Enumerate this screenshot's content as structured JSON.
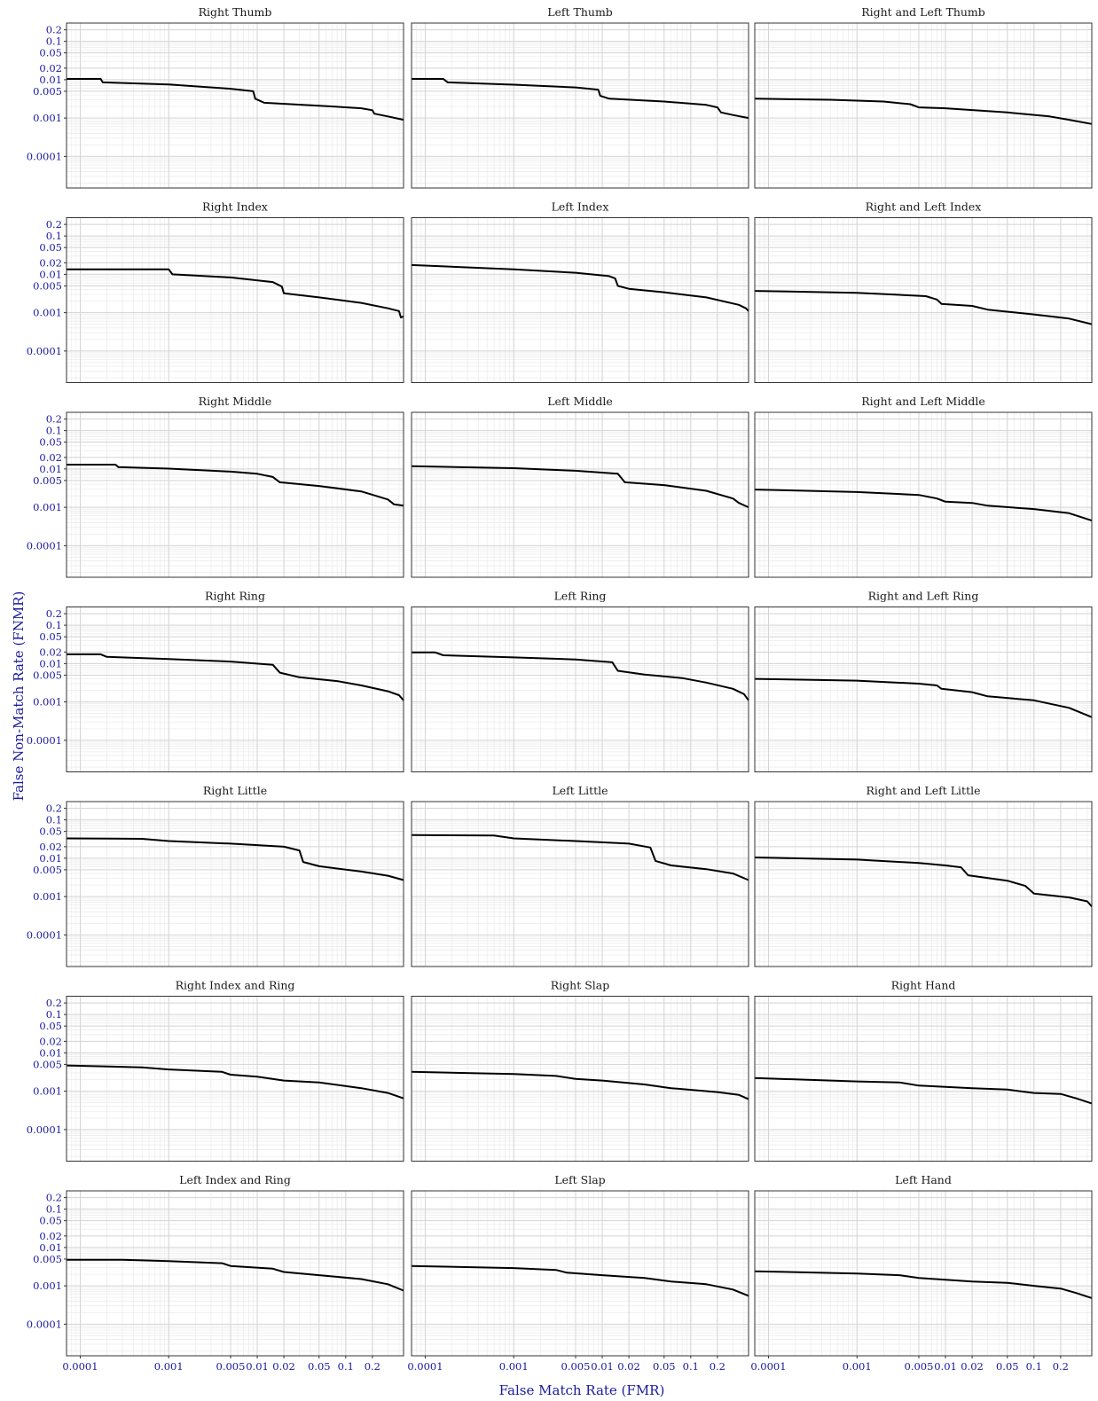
{
  "chart_data": {
    "type": "line",
    "layout": "facet-grid 7 rows x 3 columns",
    "xlabel": "False Match Rate (FMR)",
    "ylabel": "False Non-Match Rate (FNMR)",
    "xscale": "log",
    "yscale": "log",
    "xlim": [
      7e-05,
      0.45
    ],
    "ylim": [
      1.5e-05,
      0.3
    ],
    "grid": true,
    "x_ticks": [
      {
        "value": 0.0001,
        "label": "0.0001"
      },
      {
        "value": 0.001,
        "label": "0.001"
      },
      {
        "value": 0.005,
        "label": "0.005"
      },
      {
        "value": 0.01,
        "label": "0.01"
      },
      {
        "value": 0.02,
        "label": "0.02"
      },
      {
        "value": 0.05,
        "label": "0.05"
      },
      {
        "value": 0.1,
        "label": "0.1"
      },
      {
        "value": 0.2,
        "label": "0.2"
      }
    ],
    "y_ticks": [
      {
        "value": 0.0001,
        "label": "0.0001"
      },
      {
        "value": 0.001,
        "label": "0.001"
      },
      {
        "value": 0.005,
        "label": "0.005"
      },
      {
        "value": 0.01,
        "label": "0.01"
      },
      {
        "value": 0.02,
        "label": "0.02"
      },
      {
        "value": 0.05,
        "label": "0.05"
      },
      {
        "value": 0.1,
        "label": "0.1"
      },
      {
        "value": 0.2,
        "label": "0.2"
      }
    ],
    "panels": [
      {
        "title": "Right Thumb",
        "points": [
          [
            7e-05,
            0.0105
          ],
          [
            0.00017,
            0.0105
          ],
          [
            0.00018,
            0.0085
          ],
          [
            0.001,
            0.0075
          ],
          [
            0.005,
            0.0058
          ],
          [
            0.009,
            0.005
          ],
          [
            0.0095,
            0.0032
          ],
          [
            0.012,
            0.0025
          ],
          [
            0.05,
            0.0021
          ],
          [
            0.15,
            0.0018
          ],
          [
            0.2,
            0.0016
          ],
          [
            0.21,
            0.0013
          ],
          [
            0.3,
            0.0011
          ],
          [
            0.45,
            0.0009
          ]
        ]
      },
      {
        "title": "Left Thumb",
        "points": [
          [
            7e-05,
            0.0105
          ],
          [
            0.00016,
            0.0105
          ],
          [
            0.00018,
            0.0085
          ],
          [
            0.001,
            0.0074
          ],
          [
            0.005,
            0.0063
          ],
          [
            0.009,
            0.0055
          ],
          [
            0.0095,
            0.0038
          ],
          [
            0.012,
            0.0032
          ],
          [
            0.05,
            0.0027
          ],
          [
            0.15,
            0.0022
          ],
          [
            0.2,
            0.0019
          ],
          [
            0.22,
            0.0014
          ],
          [
            0.3,
            0.0012
          ],
          [
            0.45,
            0.001
          ]
        ]
      },
      {
        "title": "Right and Left Thumb",
        "points": [
          [
            7e-05,
            0.0032
          ],
          [
            0.0005,
            0.003
          ],
          [
            0.002,
            0.0027
          ],
          [
            0.004,
            0.0023
          ],
          [
            0.005,
            0.0019
          ],
          [
            0.01,
            0.0018
          ],
          [
            0.05,
            0.0014
          ],
          [
            0.15,
            0.0011
          ],
          [
            0.25,
            0.0009
          ],
          [
            0.45,
            0.0007
          ]
        ]
      },
      {
        "title": "Right Index",
        "points": [
          [
            7e-05,
            0.0135
          ],
          [
            0.001,
            0.0135
          ],
          [
            0.0011,
            0.01
          ],
          [
            0.005,
            0.0083
          ],
          [
            0.015,
            0.0063
          ],
          [
            0.019,
            0.0048
          ],
          [
            0.02,
            0.0032
          ],
          [
            0.05,
            0.0025
          ],
          [
            0.15,
            0.0018
          ],
          [
            0.3,
            0.0013
          ],
          [
            0.4,
            0.0011
          ],
          [
            0.42,
            0.00075
          ],
          [
            0.45,
            0.0008
          ]
        ]
      },
      {
        "title": "Left Index",
        "points": [
          [
            7e-05,
            0.0175
          ],
          [
            0.001,
            0.0135
          ],
          [
            0.005,
            0.011
          ],
          [
            0.012,
            0.009
          ],
          [
            0.014,
            0.0078
          ],
          [
            0.015,
            0.005
          ],
          [
            0.02,
            0.0042
          ],
          [
            0.05,
            0.0034
          ],
          [
            0.15,
            0.0025
          ],
          [
            0.35,
            0.0016
          ],
          [
            0.42,
            0.0013
          ],
          [
            0.45,
            0.0011
          ]
        ]
      },
      {
        "title": "Right and Left Index",
        "points": [
          [
            7e-05,
            0.0037
          ],
          [
            0.001,
            0.0033
          ],
          [
            0.006,
            0.0027
          ],
          [
            0.008,
            0.0022
          ],
          [
            0.009,
            0.0017
          ],
          [
            0.02,
            0.0015
          ],
          [
            0.03,
            0.0012
          ],
          [
            0.1,
            0.0009
          ],
          [
            0.25,
            0.0007
          ],
          [
            0.45,
            0.0005
          ]
        ]
      },
      {
        "title": "Right Middle",
        "points": [
          [
            7e-05,
            0.013
          ],
          [
            0.00025,
            0.013
          ],
          [
            0.00027,
            0.0112
          ],
          [
            0.001,
            0.0102
          ],
          [
            0.005,
            0.0085
          ],
          [
            0.01,
            0.0075
          ],
          [
            0.015,
            0.0062
          ],
          [
            0.018,
            0.0045
          ],
          [
            0.05,
            0.0036
          ],
          [
            0.15,
            0.0026
          ],
          [
            0.3,
            0.0016
          ],
          [
            0.35,
            0.0012
          ],
          [
            0.45,
            0.0011
          ]
        ]
      },
      {
        "title": "Left Middle",
        "points": [
          [
            7e-05,
            0.0118
          ],
          [
            0.001,
            0.0105
          ],
          [
            0.005,
            0.009
          ],
          [
            0.015,
            0.0075
          ],
          [
            0.018,
            0.0045
          ],
          [
            0.05,
            0.0038
          ],
          [
            0.15,
            0.0027
          ],
          [
            0.3,
            0.0017
          ],
          [
            0.35,
            0.0013
          ],
          [
            0.45,
            0.001
          ]
        ]
      },
      {
        "title": "Right and Left Middle",
        "points": [
          [
            7e-05,
            0.0029
          ],
          [
            0.001,
            0.0025
          ],
          [
            0.005,
            0.0021
          ],
          [
            0.008,
            0.0017
          ],
          [
            0.01,
            0.0014
          ],
          [
            0.02,
            0.0013
          ],
          [
            0.03,
            0.0011
          ],
          [
            0.1,
            0.0009
          ],
          [
            0.25,
            0.0007
          ],
          [
            0.45,
            0.00045
          ]
        ]
      },
      {
        "title": "Right Ring",
        "points": [
          [
            7e-05,
            0.0175
          ],
          [
            0.00017,
            0.0175
          ],
          [
            0.0002,
            0.015
          ],
          [
            0.001,
            0.0132
          ],
          [
            0.005,
            0.0113
          ],
          [
            0.015,
            0.0093
          ],
          [
            0.018,
            0.0058
          ],
          [
            0.03,
            0.0044
          ],
          [
            0.08,
            0.0035
          ],
          [
            0.15,
            0.0027
          ],
          [
            0.3,
            0.0019
          ],
          [
            0.4,
            0.0015
          ],
          [
            0.45,
            0.0011
          ]
        ]
      },
      {
        "title": "Left Ring",
        "points": [
          [
            7e-05,
            0.0195
          ],
          [
            0.00013,
            0.0195
          ],
          [
            0.00016,
            0.0165
          ],
          [
            0.001,
            0.0145
          ],
          [
            0.005,
            0.0128
          ],
          [
            0.013,
            0.0108
          ],
          [
            0.015,
            0.0065
          ],
          [
            0.03,
            0.0052
          ],
          [
            0.08,
            0.0042
          ],
          [
            0.15,
            0.0032
          ],
          [
            0.3,
            0.0022
          ],
          [
            0.4,
            0.0016
          ],
          [
            0.45,
            0.0011
          ]
        ]
      },
      {
        "title": "Right and Left Ring",
        "points": [
          [
            7e-05,
            0.004
          ],
          [
            0.001,
            0.0036
          ],
          [
            0.005,
            0.003
          ],
          [
            0.008,
            0.0027
          ],
          [
            0.009,
            0.0022
          ],
          [
            0.02,
            0.0018
          ],
          [
            0.03,
            0.0014
          ],
          [
            0.1,
            0.0011
          ],
          [
            0.25,
            0.0007
          ],
          [
            0.45,
            0.0004
          ]
        ]
      },
      {
        "title": "Right Little",
        "points": [
          [
            7e-05,
            0.033
          ],
          [
            0.0005,
            0.032
          ],
          [
            0.001,
            0.028
          ],
          [
            0.005,
            0.024
          ],
          [
            0.02,
            0.02
          ],
          [
            0.03,
            0.016
          ],
          [
            0.033,
            0.008
          ],
          [
            0.05,
            0.0062
          ],
          [
            0.15,
            0.0045
          ],
          [
            0.3,
            0.0035
          ],
          [
            0.45,
            0.0027
          ]
        ]
      },
      {
        "title": "Left Little",
        "points": [
          [
            7e-05,
            0.04
          ],
          [
            0.0006,
            0.039
          ],
          [
            0.001,
            0.033
          ],
          [
            0.005,
            0.028
          ],
          [
            0.02,
            0.024
          ],
          [
            0.035,
            0.019
          ],
          [
            0.04,
            0.0085
          ],
          [
            0.06,
            0.0065
          ],
          [
            0.15,
            0.0052
          ],
          [
            0.3,
            0.004
          ],
          [
            0.45,
            0.0027
          ]
        ]
      },
      {
        "title": "Right and Left Little",
        "points": [
          [
            7e-05,
            0.0105
          ],
          [
            0.001,
            0.0092
          ],
          [
            0.005,
            0.0075
          ],
          [
            0.01,
            0.0065
          ],
          [
            0.015,
            0.0058
          ],
          [
            0.018,
            0.0036
          ],
          [
            0.05,
            0.0026
          ],
          [
            0.08,
            0.0019
          ],
          [
            0.1,
            0.0012
          ],
          [
            0.25,
            0.00095
          ],
          [
            0.4,
            0.00075
          ],
          [
            0.45,
            0.00055
          ]
        ]
      },
      {
        "title": "Right Index and Ring",
        "points": [
          [
            7e-05,
            0.0047
          ],
          [
            0.0005,
            0.0042
          ],
          [
            0.001,
            0.0037
          ],
          [
            0.004,
            0.0032
          ],
          [
            0.005,
            0.0027
          ],
          [
            0.01,
            0.0024
          ],
          [
            0.02,
            0.0019
          ],
          [
            0.05,
            0.0017
          ],
          [
            0.15,
            0.0012
          ],
          [
            0.3,
            0.0009
          ],
          [
            0.45,
            0.00065
          ]
        ]
      },
      {
        "title": "Right Slap",
        "points": [
          [
            7e-05,
            0.0032
          ],
          [
            0.001,
            0.0028
          ],
          [
            0.003,
            0.0025
          ],
          [
            0.005,
            0.0021
          ],
          [
            0.01,
            0.0019
          ],
          [
            0.03,
            0.0015
          ],
          [
            0.06,
            0.0012
          ],
          [
            0.2,
            0.00095
          ],
          [
            0.35,
            0.0008
          ],
          [
            0.45,
            0.00062
          ]
        ]
      },
      {
        "title": "Right Hand",
        "points": [
          [
            7e-05,
            0.0022
          ],
          [
            0.001,
            0.0018
          ],
          [
            0.003,
            0.0017
          ],
          [
            0.005,
            0.0014
          ],
          [
            0.02,
            0.0012
          ],
          [
            0.05,
            0.0011
          ],
          [
            0.1,
            0.0009
          ],
          [
            0.2,
            0.00085
          ],
          [
            0.3,
            0.00065
          ],
          [
            0.45,
            0.00048
          ]
        ]
      },
      {
        "title": "Left Index and Ring",
        "points": [
          [
            7e-05,
            0.0048
          ],
          [
            0.0003,
            0.0048
          ],
          [
            0.001,
            0.0044
          ],
          [
            0.004,
            0.0039
          ],
          [
            0.005,
            0.0033
          ],
          [
            0.015,
            0.0028
          ],
          [
            0.02,
            0.0023
          ],
          [
            0.05,
            0.0019
          ],
          [
            0.15,
            0.0015
          ],
          [
            0.3,
            0.0011
          ],
          [
            0.45,
            0.00075
          ]
        ]
      },
      {
        "title": "Left Slap",
        "points": [
          [
            7e-05,
            0.0033
          ],
          [
            0.001,
            0.0029
          ],
          [
            0.003,
            0.0026
          ],
          [
            0.004,
            0.0022
          ],
          [
            0.01,
            0.0019
          ],
          [
            0.03,
            0.0016
          ],
          [
            0.06,
            0.0013
          ],
          [
            0.15,
            0.0011
          ],
          [
            0.3,
            0.0008
          ],
          [
            0.45,
            0.00055
          ]
        ]
      },
      {
        "title": "Left Hand",
        "points": [
          [
            7e-05,
            0.0024
          ],
          [
            0.001,
            0.0021
          ],
          [
            0.003,
            0.0019
          ],
          [
            0.005,
            0.0016
          ],
          [
            0.02,
            0.0013
          ],
          [
            0.05,
            0.0012
          ],
          [
            0.1,
            0.001
          ],
          [
            0.2,
            0.00085
          ],
          [
            0.3,
            0.00065
          ],
          [
            0.45,
            0.00048
          ]
        ]
      }
    ]
  }
}
